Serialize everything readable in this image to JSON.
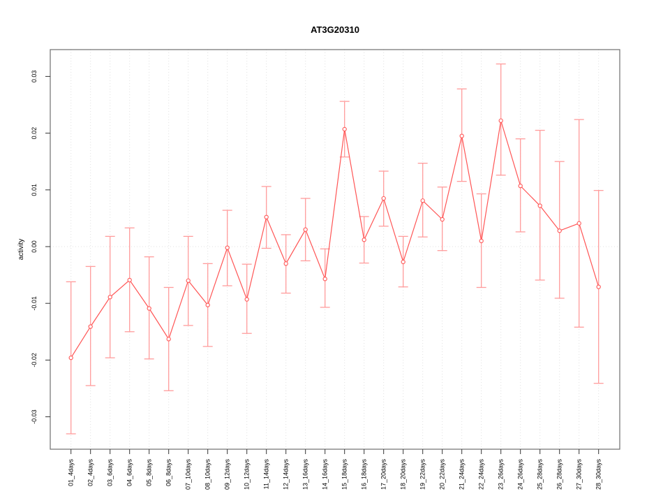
{
  "chart_data": {
    "type": "line",
    "title": "AT3G20310",
    "xlabel": "",
    "ylabel": "activity",
    "categories": [
      "01_4days",
      "02_4days",
      "03_6days",
      "04_6days",
      "05_8days",
      "06_8days",
      "07_10days",
      "08_10days",
      "09_12days",
      "10_12days",
      "11_14days",
      "12_14days",
      "13_16days",
      "14_16days",
      "15_18days",
      "16_18days",
      "17_20days",
      "18_20days",
      "19_22days",
      "20_22days",
      "21_24days",
      "22_24days",
      "23_26days",
      "24_26days",
      "25_28days",
      "26_28days",
      "27_30days",
      "28_30days"
    ],
    "values": [
      -0.0196,
      -0.0141,
      -0.0089,
      -0.0059,
      -0.0109,
      -0.0163,
      -0.006,
      -0.0103,
      -0.0002,
      -0.0093,
      0.0052,
      -0.003,
      0.003,
      -0.0057,
      0.0207,
      0.0012,
      0.0085,
      -0.0027,
      0.0081,
      0.0048,
      0.0195,
      0.001,
      0.0222,
      0.0107,
      0.0072,
      0.0028,
      0.0041,
      -0.0071
    ],
    "error_low": [
      -0.033,
      -0.0245,
      -0.0196,
      -0.015,
      -0.0198,
      -0.0254,
      -0.0139,
      -0.0176,
      -0.0069,
      -0.0153,
      -0.0003,
      -0.0082,
      -0.0025,
      -0.0107,
      0.0158,
      -0.0029,
      0.0036,
      -0.0071,
      0.0017,
      -0.0007,
      0.0115,
      -0.0072,
      0.0126,
      0.0026,
      -0.0059,
      -0.0091,
      -0.0142,
      -0.0241
    ],
    "error_high": [
      -0.0062,
      -0.0035,
      0.0018,
      0.0033,
      -0.0018,
      -0.0072,
      0.0018,
      -0.003,
      0.0064,
      -0.0031,
      0.0106,
      0.0021,
      0.0085,
      -0.0004,
      0.0256,
      0.0053,
      0.0133,
      0.0018,
      0.0147,
      0.0105,
      0.0278,
      0.0093,
      0.0322,
      0.019,
      0.0205,
      0.015,
      0.0224,
      0.0099
    ],
    "yticks": [
      -0.03,
      -0.02,
      -0.01,
      0.0,
      0.01,
      0.02,
      0.03
    ],
    "ylim": [
      -0.0355,
      0.035
    ],
    "grid": "dotted vertical gridline at every category; dotted horizontal line at y=0",
    "legend": "none",
    "marker": "open-circle",
    "colors": {
      "series_line": "#ff5555",
      "marker_stroke": "#ff5555",
      "error_bar": "#ff9c9c",
      "grid_line": "#e0e0e0",
      "zero_line": "#e0e0e0",
      "frame": "#6e6e6e",
      "tick": "#333333",
      "background": "#ffffff"
    }
  }
}
